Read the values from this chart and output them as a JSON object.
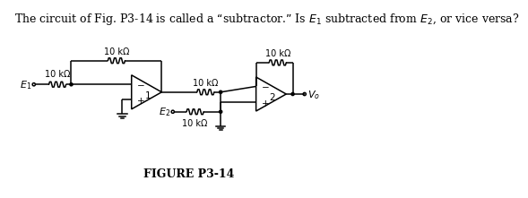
{
  "title_text": "The circuit of Fig. P3-14 is called a “subtractor.” Is $E_1$ subtracted from $E_2$, or vice versa?",
  "figure_label": "FIGURE P3-14",
  "background_color": "#ffffff",
  "line_color": "#000000",
  "resistor_label": "10 kΩ",
  "op_amp1_label": "1",
  "op_amp2_label": "2",
  "E1_label": "$E_1$",
  "E2_label": "$E_2$",
  "Vo_label": "$V_o$",
  "title_fontsize": 9.0,
  "label_fontsize": 7.5,
  "res_label_fontsize": 7.0,
  "fig_label_fontsize": 9.0
}
